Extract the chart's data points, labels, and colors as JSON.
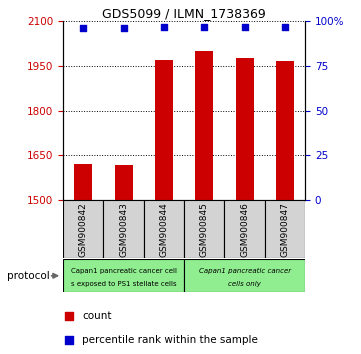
{
  "title": "GDS5099 / ILMN_1738369",
  "samples": [
    "GSM900842",
    "GSM900843",
    "GSM900844",
    "GSM900845",
    "GSM900846",
    "GSM900847"
  ],
  "counts": [
    1620,
    1618,
    1970,
    2000,
    1978,
    1968
  ],
  "percentiles": [
    96,
    96,
    97,
    97,
    97,
    97
  ],
  "ylim_left": [
    1500,
    2100
  ],
  "ylim_right": [
    0,
    100
  ],
  "yticks_left": [
    1500,
    1650,
    1800,
    1950,
    2100
  ],
  "yticks_right": [
    0,
    25,
    50,
    75,
    100
  ],
  "bar_color": "#cc0000",
  "dot_color": "#0000cc",
  "bg_color": "#ffffff",
  "sample_box_bg": "#d3d3d3",
  "protocol_bg": "#90ee90",
  "protocol_label": "protocol",
  "protocol_group1_text": "Capan1 pancreatic cancer cells exposed to PS1 stellate cells",
  "protocol_group2_text": "Capan1 pancreatic cancer cells only",
  "legend_count_label": "count",
  "legend_pct_label": "percentile rank within the sample",
  "bar_width": 0.45,
  "dot_size": 25
}
